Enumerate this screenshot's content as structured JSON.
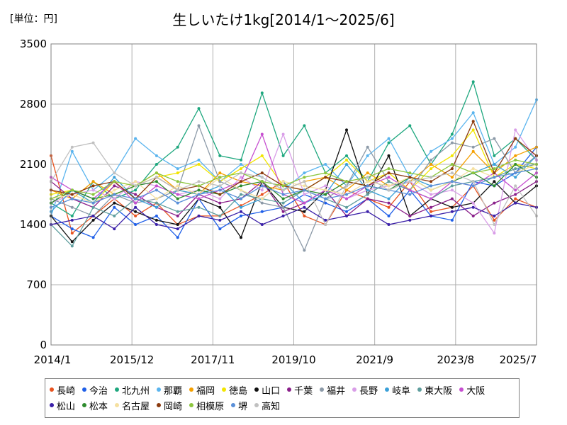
{
  "unit_label": "[単位：円]",
  "chart_data": {
    "type": "line",
    "title": "生しいたけ1kg[2014/1～2025/6]",
    "xlabel": "",
    "ylabel": "",
    "ylim": [
      0,
      3500
    ],
    "yticks": [
      0,
      700,
      1400,
      2100,
      2800,
      3500
    ],
    "xticks": [
      "2014/1",
      "2015/12",
      "2017/11",
      "2019/10",
      "2021/9",
      "2023/8",
      "2025/7"
    ],
    "x_start": "2014/1",
    "x_end": "2025/7",
    "grid": true,
    "legend_position": "bottom",
    "series": [
      {
        "name": "長崎",
        "color": "#e8531f",
        "values": [
          2200,
          1300,
          1500,
          1700,
          1500,
          1650,
          1400,
          1500,
          1500,
          1620,
          1750,
          1900,
          1500,
          1400,
          1800,
          1700,
          1600,
          1900,
          1550,
          1600,
          1850,
          1450,
          1700,
          1600
        ]
      },
      {
        "name": "今治",
        "color": "#1f5fe8",
        "values": [
          1500,
          1350,
          1250,
          1600,
          1400,
          1500,
          1250,
          1700,
          1350,
          1500,
          1550,
          1600,
          1750,
          1650,
          1550,
          1700,
          1500,
          1800,
          1500,
          1450,
          1900,
          1850,
          2000,
          2300
        ]
      },
      {
        "name": "北九州",
        "color": "#1ea77e",
        "values": [
          1650,
          1500,
          1900,
          1700,
          1800,
          2100,
          2300,
          2750,
          2200,
          2150,
          2930,
          2200,
          2550,
          2000,
          2200,
          1900,
          2350,
          2550,
          2100,
          2450,
          3060,
          2200,
          2400,
          2150
        ]
      },
      {
        "name": "那覇",
        "color": "#5ab4ee",
        "values": [
          1500,
          2250,
          1800,
          2000,
          2400,
          2200,
          2050,
          2150,
          1900,
          2100,
          1950,
          1800,
          2000,
          2100,
          1850,
          2200,
          2400,
          1950,
          2250,
          2400,
          2700,
          2100,
          2300,
          2850
        ]
      },
      {
        "name": "福岡",
        "color": "#f5a000",
        "values": [
          1800,
          1700,
          1900,
          1750,
          1850,
          2000,
          1800,
          1750,
          2000,
          1900,
          1850,
          1800,
          1900,
          1950,
          1800,
          2000,
          1850,
          1900,
          2100,
          1950,
          2250,
          2000,
          2200,
          2300
        ]
      },
      {
        "name": "徳島",
        "color": "#f2e500",
        "values": [
          1750,
          1800,
          1650,
          1900,
          1850,
          1950,
          2000,
          2100,
          1900,
          2050,
          2200,
          1850,
          1800,
          1950,
          2150,
          1900,
          2000,
          1800,
          2050,
          2200,
          2500,
          1950,
          2100,
          2050
        ]
      },
      {
        "name": "山口",
        "color": "#111111",
        "values": [
          1500,
          1200,
          1450,
          1650,
          1550,
          1450,
          1400,
          1700,
          1600,
          1250,
          1900,
          1600,
          1550,
          1800,
          2500,
          1750,
          2200,
          1500,
          1700,
          1600,
          1650,
          1900,
          1650,
          1850
        ]
      },
      {
        "name": "千葉",
        "color": "#8a1f8a",
        "values": [
          1900,
          1700,
          1600,
          1850,
          1750,
          1600,
          1500,
          1750,
          1650,
          1700,
          1900,
          1550,
          1650,
          1800,
          1500,
          1700,
          1650,
          1500,
          1600,
          1700,
          1500,
          1650,
          1750,
          1900
        ]
      },
      {
        "name": "福井",
        "color": "#8c9aa8",
        "values": [
          1700,
          1600,
          1500,
          1750,
          1650,
          1700,
          1800,
          2550,
          1900,
          1800,
          1650,
          1600,
          1100,
          1700,
          1850,
          2300,
          1900,
          1800,
          2150,
          2350,
          2300,
          2400,
          2000,
          2200
        ]
      },
      {
        "name": "長野",
        "color": "#d99ee8",
        "values": [
          1650,
          1750,
          1800,
          1700,
          1900,
          1850,
          1750,
          1800,
          1700,
          1950,
          1800,
          2450,
          1750,
          1850,
          1700,
          1800,
          1850,
          1900,
          1750,
          1800,
          1650,
          1300,
          2500,
          2150
        ]
      },
      {
        "name": "岐阜",
        "color": "#3aa0d8",
        "values": [
          1550,
          1800,
          1650,
          1950,
          1700,
          1600,
          1800,
          1750,
          1850,
          1600,
          1700,
          1900,
          1650,
          1750,
          2100,
          1800,
          1700,
          1950,
          1850,
          1900,
          2000,
          2100,
          1950,
          2200
        ]
      },
      {
        "name": "東大阪",
        "color": "#5f9e9e",
        "values": [
          1400,
          1150,
          1600,
          1500,
          1700,
          1650,
          1550,
          1600,
          1500,
          1750,
          1700,
          1650,
          1800,
          1700,
          1600,
          1750,
          1900,
          1800,
          1700,
          1850,
          1900,
          1950,
          2050,
          2100
        ]
      },
      {
        "name": "大阪",
        "color": "#c64fd0",
        "values": [
          1950,
          1800,
          1700,
          1900,
          1650,
          1850,
          1750,
          1700,
          1800,
          1900,
          2450,
          1750,
          1650,
          1800,
          1700,
          1850,
          1950,
          1800,
          1700,
          1900,
          1850,
          2000,
          1800,
          2000
        ]
      },
      {
        "name": "松山",
        "color": "#3a1fa8",
        "values": [
          1400,
          1450,
          1500,
          1350,
          1600,
          1400,
          1350,
          1500,
          1450,
          1550,
          1400,
          1500,
          1600,
          1450,
          1500,
          1550,
          1400,
          1450,
          1500,
          1550,
          1600,
          1500,
          1650,
          1600
        ]
      },
      {
        "name": "松本",
        "color": "#2e8b2e",
        "values": [
          1650,
          1800,
          1700,
          1750,
          1850,
          1900,
          1700,
          1800,
          1750,
          1850,
          1900,
          1700,
          1800,
          1750,
          1900,
          1850,
          1800,
          1950,
          1800,
          1900,
          2000,
          1850,
          2100,
          1950
        ]
      },
      {
        "name": "名古屋",
        "color": "#f5e0a0",
        "values": [
          1700,
          1750,
          1650,
          1800,
          1900,
          1700,
          1850,
          1750,
          1950,
          1800,
          1700,
          1900,
          1850,
          1800,
          1750,
          1900,
          1850,
          1950,
          1800,
          1900,
          2050,
          1950,
          2000,
          2100
        ]
      },
      {
        "name": "岡崎",
        "color": "#8b3a0f",
        "values": [
          1800,
          1750,
          1850,
          1900,
          1700,
          1950,
          1800,
          1850,
          1750,
          1900,
          2000,
          1850,
          1800,
          1950,
          1900,
          1850,
          2000,
          1950,
          1900,
          2050,
          2600,
          2000,
          2400,
          2200
        ]
      },
      {
        "name": "相模原",
        "color": "#8cc63e",
        "values": [
          1700,
          1800,
          1750,
          1900,
          1850,
          2000,
          1900,
          1850,
          1950,
          2000,
          1900,
          1850,
          1950,
          2000,
          1900,
          1950,
          2050,
          2000,
          1950,
          2100,
          2000,
          2050,
          2150,
          2100
        ]
      },
      {
        "name": "堺",
        "color": "#5a8fd8",
        "values": [
          1600,
          1700,
          1650,
          1750,
          1700,
          1800,
          1650,
          1750,
          1800,
          1700,
          1850,
          1750,
          1800,
          1700,
          1750,
          1850,
          1800,
          1750,
          1850,
          1900,
          1850,
          1950,
          2000,
          2050
        ]
      },
      {
        "name": "高知",
        "color": "#c0c0c0",
        "values": [
          1900,
          2300,
          2350,
          2000,
          1850,
          1950,
          1800,
          1900,
          1850,
          2000,
          1950,
          1800,
          1900,
          1400,
          1850,
          1950,
          1800,
          1900,
          1950,
          2000,
          1900,
          1400,
          1850,
          1500
        ]
      }
    ]
  }
}
